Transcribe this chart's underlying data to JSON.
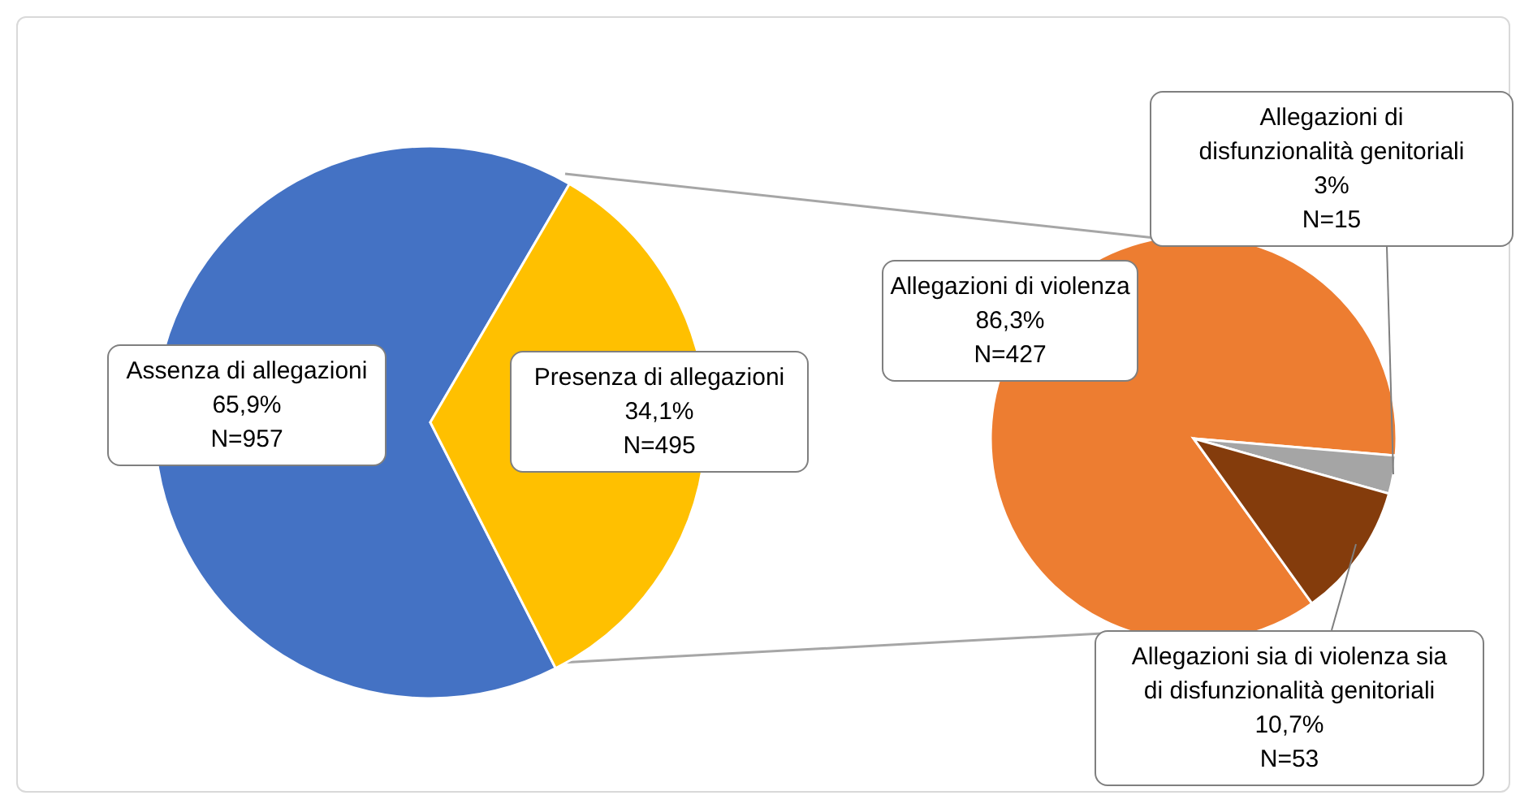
{
  "chart_data": [
    {
      "type": "pie",
      "categories": [
        "Assenza di allegazioni",
        "Presenza di allegazioni"
      ],
      "values": [
        957,
        495
      ],
      "colors": [
        "#4472c4",
        "#ffc000"
      ],
      "value_labels": [
        "65,9%\nN=957",
        "34,1%\nN=495"
      ]
    },
    {
      "type": "pie",
      "categories": [
        "Allegazioni di violenza",
        "Allegazioni di disfunzionalità genitoriali",
        "Allegazioni sia di violenza sia di disfunzionalità genitoriali"
      ],
      "values": [
        427,
        15,
        53
      ],
      "colors": [
        "#ed7d31",
        "#a5a5a5",
        "#843c0c"
      ],
      "value_labels": [
        "86,3%\nN=427",
        "3%\nN=15",
        "10,7%\nN=53"
      ]
    }
  ]
}
